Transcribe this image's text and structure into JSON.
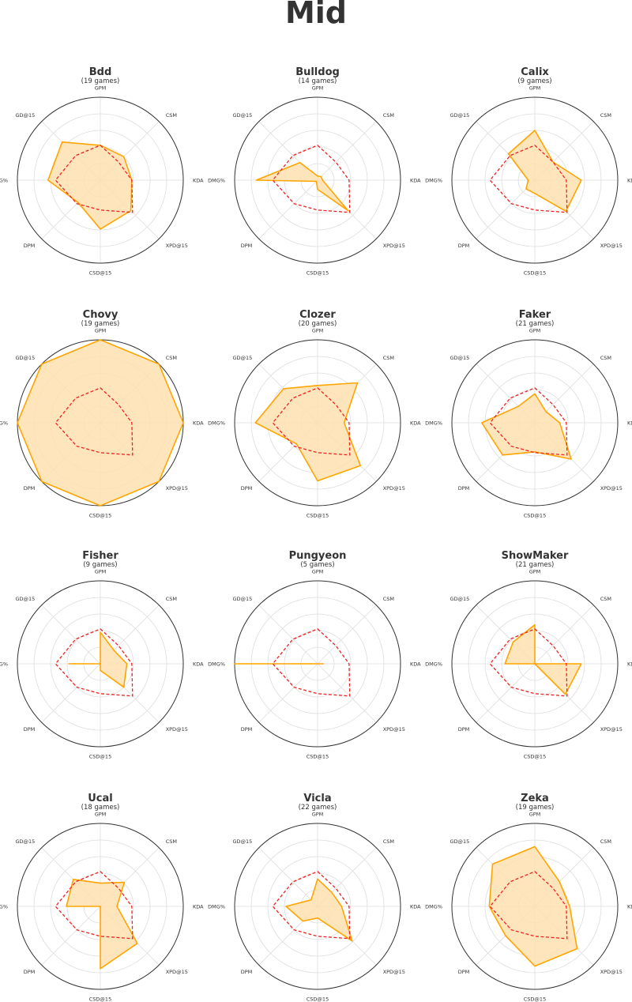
{
  "title": "Mid",
  "colors": {
    "fill": "#ffe0b0",
    "stroke": "#ffa500",
    "reference": "#ee2222",
    "circle": "#333333",
    "grid": "#dddddd",
    "text": "#333333"
  },
  "axes": [
    "GPM",
    "CSM",
    "KDA",
    "XPD@15",
    "CSD@15",
    "DPM",
    "DMG%",
    "GD@15"
  ],
  "chart_data": [
    {
      "type": "radar",
      "title": "Bdd",
      "subtitle": "(19 games)",
      "series": [
        {
          "values": [
            0.42,
            0.4,
            0.38,
            0.52,
            0.59,
            0.38,
            0.63,
            0.65
          ]
        }
      ],
      "reference": [
        0.42,
        0.31,
        0.38,
        0.55,
        0.36,
        0.4,
        0.54,
        0.42
      ],
      "rmax": 1
    },
    {
      "type": "radar",
      "title": "Bulldog",
      "subtitle": "(14 games)",
      "series": [
        {
          "values": [
            0.05,
            0.06,
            0.06,
            0.52,
            0.11,
            0.02,
            0.74,
            0.3
          ]
        }
      ],
      "reference": [
        0.42,
        0.31,
        0.38,
        0.55,
        0.36,
        0.4,
        0.54,
        0.42
      ],
      "rmax": 1
    },
    {
      "type": "radar",
      "title": "Calix",
      "subtitle": "(9 games)",
      "series": [
        {
          "values": [
            0.6,
            0.31,
            0.56,
            0.53,
            0.16,
            0.15,
            0.08,
            0.45
          ]
        }
      ],
      "reference": [
        0.42,
        0.31,
        0.38,
        0.55,
        0.36,
        0.4,
        0.54,
        0.42
      ],
      "rmax": 1
    },
    {
      "type": "radar",
      "title": "Chovy",
      "subtitle": "(19 games)",
      "series": [
        {
          "values": [
            1.0,
            1.0,
            1.0,
            1.0,
            1.0,
            1.0,
            1.0,
            1.0
          ]
        }
      ],
      "reference": [
        0.42,
        0.31,
        0.38,
        0.55,
        0.36,
        0.4,
        0.54,
        0.42
      ],
      "rmax": 1
    },
    {
      "type": "radar",
      "title": "Clozer",
      "subtitle": "(20 games)",
      "series": [
        {
          "values": [
            0.45,
            0.68,
            0.32,
            0.73,
            0.7,
            0.36,
            0.75,
            0.58
          ]
        }
      ],
      "reference": [
        0.42,
        0.31,
        0.38,
        0.55,
        0.36,
        0.4,
        0.54,
        0.42
      ],
      "rmax": 1
    },
    {
      "type": "radar",
      "title": "Faker",
      "subtitle": "(21 games)",
      "series": [
        {
          "values": [
            0.35,
            0.19,
            0.3,
            0.62,
            0.35,
            0.55,
            0.64,
            0.28
          ]
        }
      ],
      "reference": [
        0.42,
        0.31,
        0.38,
        0.55,
        0.36,
        0.4,
        0.54,
        0.42
      ],
      "rmax": 1
    },
    {
      "type": "radar",
      "title": "Fisher",
      "subtitle": "(9 games)",
      "series": [
        {
          "values": [
            0.38,
            0.23,
            0.32,
            0.4,
            0.08,
            0.0,
            0.38,
            0.0
          ]
        }
      ],
      "reference": [
        0.42,
        0.31,
        0.38,
        0.55,
        0.36,
        0.4,
        0.54,
        0.42
      ],
      "rmax": 1
    },
    {
      "type": "radar",
      "title": "Pungyeon",
      "subtitle": "(5 games)",
      "series": [
        {
          "values": [
            0.0,
            0.0,
            0.07,
            0.0,
            0.0,
            0.0,
            1.0,
            0.0
          ]
        }
      ],
      "reference": [
        0.42,
        0.31,
        0.38,
        0.55,
        0.36,
        0.4,
        0.54,
        0.42
      ],
      "rmax": 1
    },
    {
      "type": "radar",
      "title": "ShowMaker",
      "subtitle": "(21 games)",
      "series": [
        {
          "values": [
            0.47,
            0.0,
            0.56,
            0.52,
            0.0,
            0.0,
            0.36,
            0.37
          ]
        }
      ],
      "reference": [
        0.42,
        0.31,
        0.38,
        0.55,
        0.36,
        0.4,
        0.54,
        0.42
      ],
      "rmax": 1
    },
    {
      "type": "radar",
      "title": "Ucal",
      "subtitle": "(18 games)",
      "series": [
        {
          "values": [
            0.28,
            0.41,
            0.2,
            0.63,
            0.75,
            0.0,
            0.41,
            0.46
          ]
        }
      ],
      "reference": [
        0.42,
        0.31,
        0.38,
        0.55,
        0.36,
        0.4,
        0.54,
        0.42
      ],
      "rmax": 1
    },
    {
      "type": "radar",
      "title": "Vicla",
      "subtitle": "(22 games)",
      "series": [
        {
          "values": [
            0.33,
            0.24,
            0.29,
            0.59,
            0.14,
            0.25,
            0.38,
            0.11
          ]
        }
      ],
      "reference": [
        0.42,
        0.31,
        0.38,
        0.55,
        0.36,
        0.4,
        0.54,
        0.42
      ],
      "rmax": 1
    },
    {
      "type": "radar",
      "title": "Zeka",
      "subtitle": "(19 games)",
      "series": [
        {
          "values": [
            0.72,
            0.42,
            0.42,
            0.72,
            0.72,
            0.5,
            0.55,
            0.72
          ]
        }
      ],
      "reference": [
        0.42,
        0.31,
        0.38,
        0.55,
        0.36,
        0.4,
        0.54,
        0.42
      ],
      "rmax": 1
    }
  ]
}
